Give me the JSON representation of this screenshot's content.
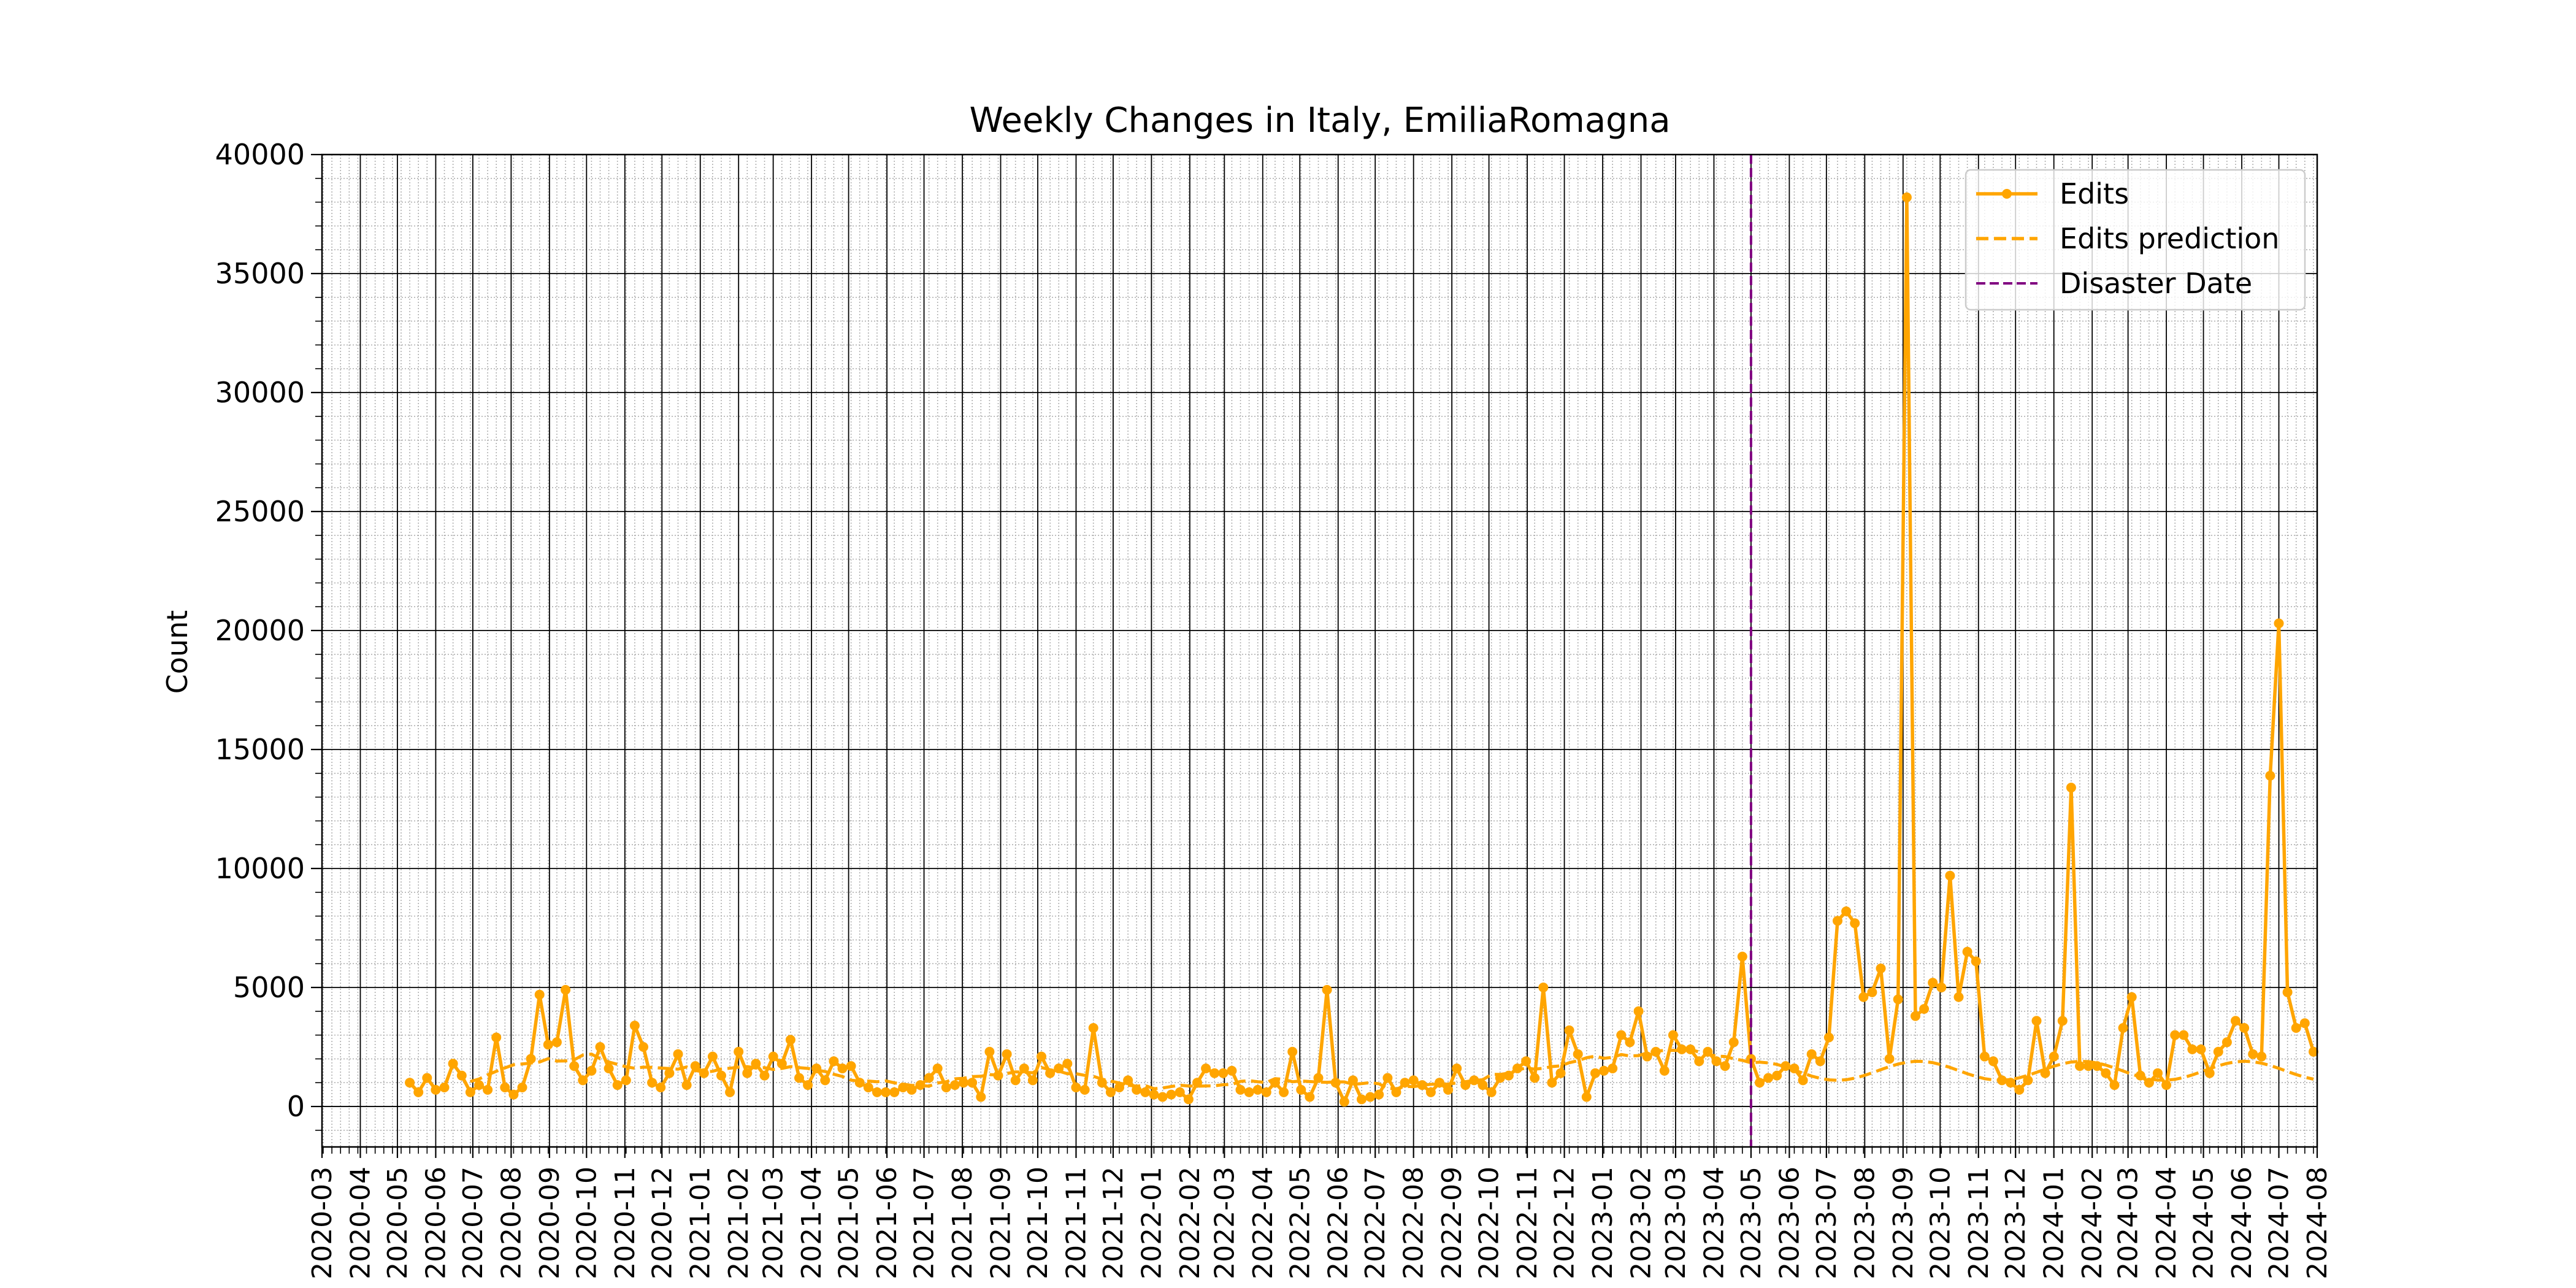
{
  "chart_data": {
    "type": "line",
    "title": "Weekly Changes in Italy, EmiliaRomagna",
    "xlabel": "",
    "ylabel": "Count",
    "xlim": [
      "2020-03-01",
      "2024-08-01"
    ],
    "ylim": [
      -1700,
      40000
    ],
    "y_ticks": [
      0,
      5000,
      10000,
      15000,
      20000,
      25000,
      30000,
      35000,
      40000
    ],
    "x_ticks": [
      "2020-03",
      "2020-04",
      "2020-05",
      "2020-06",
      "2020-07",
      "2020-08",
      "2020-09",
      "2020-10",
      "2020-11",
      "2020-12",
      "2021-01",
      "2021-02",
      "2021-03",
      "2021-04",
      "2021-05",
      "2021-06",
      "2021-07",
      "2021-08",
      "2021-09",
      "2021-10",
      "2021-11",
      "2021-12",
      "2022-01",
      "2022-02",
      "2022-03",
      "2022-04",
      "2022-05",
      "2022-06",
      "2022-07",
      "2022-08",
      "2022-09",
      "2022-10",
      "2022-11",
      "2022-12",
      "2023-01",
      "2023-02",
      "2023-03",
      "2023-04",
      "2023-05",
      "2023-06",
      "2023-07",
      "2023-08",
      "2023-09",
      "2023-10",
      "2023-11",
      "2023-12",
      "2024-01",
      "2024-02",
      "2024-03",
      "2024-04",
      "2024-05",
      "2024-06",
      "2024-07",
      "2024-08"
    ],
    "grid": true,
    "legend_position": "top-right",
    "colors": {
      "edits": "#ffa500",
      "prediction": "#ffa500",
      "disaster": "#800080"
    },
    "x_start": "2020-05-11",
    "interval_days": 7,
    "series": [
      {
        "name": "Edits",
        "style": "solid-markers",
        "values": [
          1000,
          600,
          1200,
          700,
          800,
          1800,
          1300,
          600,
          900,
          700,
          2900,
          800,
          500,
          800,
          2000,
          4700,
          2600,
          2700,
          4900,
          1700,
          1100,
          1500,
          2500,
          1600,
          900,
          1100,
          3400,
          2500,
          1000,
          800,
          1400,
          2200,
          900,
          1700,
          1400,
          2100,
          1300,
          600,
          2300,
          1400,
          1800,
          1300,
          2100,
          1800,
          2800,
          1200,
          900,
          1600,
          1100,
          1900,
          1600,
          1700,
          1000,
          800,
          600,
          600,
          600,
          800,
          700,
          900,
          1200,
          1600,
          800,
          900,
          1000,
          1000,
          400,
          2300,
          1300,
          2200,
          1100,
          1600,
          1100,
          2100,
          1400,
          1600,
          1800,
          800,
          700,
          3300,
          1000,
          600,
          800,
          1100,
          700,
          600,
          500,
          400,
          500,
          600,
          300,
          1000,
          1600,
          1400,
          1400,
          1500,
          700,
          600,
          700,
          600,
          1000,
          600,
          2300,
          700,
          400,
          1200,
          4900,
          1000,
          200,
          1100,
          300,
          400,
          500,
          1200,
          600,
          1000,
          1100,
          900,
          600,
          1000,
          700,
          1600,
          900,
          1100,
          900,
          600,
          1200,
          1300,
          1600,
          1900,
          1200,
          5000,
          1000,
          1400,
          3200,
          2200,
          400,
          1400,
          1500,
          1600,
          3000,
          2700,
          4000,
          2100,
          2300,
          1500,
          3000,
          2400,
          2400,
          1900,
          2300,
          1900,
          1700,
          2700,
          6300,
          2000,
          1000,
          1200,
          1300,
          1700,
          1600,
          1100,
          2200,
          1900,
          2900,
          7800,
          8200,
          7700,
          4600,
          4800,
          5800,
          2000,
          4500,
          38200,
          3800,
          4100,
          5200,
          5000,
          9700,
          4600,
          6500,
          6100,
          2100,
          1900,
          1100,
          1000,
          700,
          1100,
          3600,
          1400,
          2100,
          3600,
          13400,
          1700,
          1700,
          1700,
          1400,
          900,
          3300,
          4600,
          1300,
          1000,
          1400,
          900,
          3000,
          3000,
          2400,
          2400,
          1400,
          2300,
          2700,
          3600,
          3300,
          2200,
          2100,
          13900,
          20300,
          4800,
          3300,
          3500,
          2300
        ]
      },
      {
        "name": "Edits prediction",
        "style": "dashed",
        "values": [
          null,
          null,
          null,
          null,
          null,
          null,
          null,
          null,
          null,
          null,
          null,
          null,
          null,
          null,
          null,
          null,
          null,
          null,
          null,
          null,
          null,
          null,
          null,
          null,
          null,
          null,
          null,
          null,
          null,
          null,
          null,
          null,
          null,
          null,
          null,
          null,
          null,
          null,
          null,
          null,
          null,
          null,
          null,
          null,
          null,
          null,
          null,
          null,
          null,
          null,
          null,
          null,
          null,
          null,
          null,
          null,
          null,
          null,
          null,
          null,
          null,
          null,
          null,
          null,
          null,
          null,
          null,
          null,
          null,
          null,
          null,
          null,
          null,
          null,
          null,
          null,
          null,
          null,
          null,
          null,
          null,
          null,
          null,
          null,
          null,
          null,
          null,
          null,
          null,
          null,
          null,
          null,
          null,
          null,
          null,
          null,
          null,
          null,
          null,
          null,
          null,
          null,
          null,
          null,
          null,
          null,
          null,
          null,
          null,
          null,
          null,
          null,
          null,
          null,
          null,
          null,
          null,
          null,
          null,
          null,
          null,
          null,
          null,
          null,
          null,
          null,
          null,
          null,
          null,
          null,
          null,
          null,
          null,
          null,
          null,
          null,
          null,
          null,
          null,
          null,
          null,
          null,
          null,
          null,
          null,
          null,
          null,
          null,
          null,
          null,
          null,
          null,
          null,
          null,
          null,
          null,
          null,
          null,
          null,
          null,
          null,
          null,
          null,
          null,
          null,
          null,
          null,
          null,
          null,
          null,
          null,
          null,
          null,
          null,
          null,
          null,
          null,
          null,
          null,
          null,
          null,
          null,
          null,
          null,
          null,
          null,
          null,
          null,
          null,
          null,
          null,
          null,
          null,
          null,
          null,
          null,
          null,
          null,
          null,
          null,
          null,
          null,
          null,
          null,
          null,
          null,
          null,
          null,
          null,
          null,
          null,
          null,
          null,
          null,
          null,
          null,
          null,
          null,
          null,
          null,
          null,
          null,
          null,
          null,
          null,
          null,
          null,
          null,
          null,
          null,
          null,
          null,
          null,
          null,
          null,
          null,
          null,
          null,
          null,
          null,
          null,
          null,
          null
        ]
      }
    ],
    "disaster_date": "2023-05-01",
    "legend": [
      "Edits",
      "Edits prediction",
      "Disaster Date"
    ]
  }
}
